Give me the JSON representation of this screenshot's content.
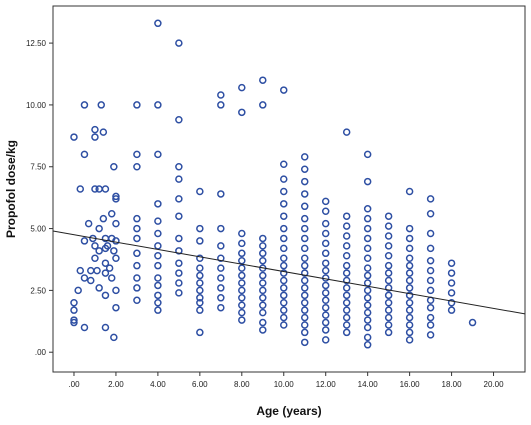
{
  "chart_data": {
    "type": "scatter",
    "title": "",
    "xlabel": "Age (years)",
    "ylabel": "Propofol dose/kg",
    "xlim": [
      -1,
      21.5
    ],
    "ylim": [
      -0.8,
      14
    ],
    "x_ticks": [
      ".00",
      "2.00",
      "4.00",
      "6.00",
      "8.00",
      "10.00",
      "12.00",
      "14.00",
      "16.00",
      "18.00",
      "20.00"
    ],
    "x_tick_values": [
      0,
      2,
      4,
      6,
      8,
      10,
      12,
      14,
      16,
      18,
      20
    ],
    "y_ticks": [
      ".00",
      "2.50",
      "5.00",
      "7.50",
      "10.00",
      "12.50"
    ],
    "y_tick_values": [
      0,
      2.5,
      5,
      7.5,
      10,
      12.5
    ],
    "grid": false,
    "legend": "none",
    "marker_color": "#2e4fa3",
    "fit_line": {
      "color": "#222222",
      "x": [
        -1,
        21.5
      ],
      "y": [
        4.9,
        1.55
      ]
    },
    "series": [
      {
        "points": [
          [
            0,
            8.7
          ],
          [
            0,
            2.0
          ],
          [
            0,
            1.7
          ],
          [
            0,
            1.3
          ],
          [
            0,
            1.2
          ],
          [
            0.2,
            2.5
          ],
          [
            0.3,
            3.3
          ],
          [
            0.3,
            6.6
          ],
          [
            0.5,
            8.0
          ],
          [
            0.5,
            10.0
          ],
          [
            0.5,
            4.5
          ],
          [
            0.5,
            3.0
          ],
          [
            0.5,
            1.0
          ],
          [
            0.7,
            5.2
          ],
          [
            0.8,
            3.3
          ],
          [
            0.8,
            2.9
          ],
          [
            0.9,
            4.6
          ],
          [
            1,
            6.6
          ],
          [
            1,
            9.0
          ],
          [
            1,
            8.7
          ],
          [
            1,
            4.3
          ],
          [
            1,
            3.8
          ],
          [
            1.1,
            3.3
          ],
          [
            1.2,
            6.6
          ],
          [
            1.2,
            5.0
          ],
          [
            1.2,
            4.1
          ],
          [
            1.2,
            2.6
          ],
          [
            1.3,
            10.0
          ],
          [
            1.4,
            8.9
          ],
          [
            1.4,
            5.4
          ],
          [
            1.5,
            6.6
          ],
          [
            1.5,
            4.6
          ],
          [
            1.5,
            4.2
          ],
          [
            1.5,
            3.6
          ],
          [
            1.5,
            3.2
          ],
          [
            1.5,
            2.3
          ],
          [
            1.5,
            1.0
          ],
          [
            1.6,
            4.3
          ],
          [
            1.7,
            3.4
          ],
          [
            1.8,
            5.6
          ],
          [
            1.8,
            4.6
          ],
          [
            1.8,
            3.0
          ],
          [
            1.9,
            4.1
          ],
          [
            1.9,
            7.5
          ],
          [
            1.9,
            0.6
          ],
          [
            2,
            6.2
          ],
          [
            2,
            5.2
          ],
          [
            2,
            4.5
          ],
          [
            2,
            3.8
          ],
          [
            2,
            2.5
          ],
          [
            2,
            6.3
          ],
          [
            2,
            1.8
          ],
          [
            3,
            10.0
          ],
          [
            3,
            8.0
          ],
          [
            3,
            7.5
          ],
          [
            3,
            5.4
          ],
          [
            3,
            5.0
          ],
          [
            3,
            4.6
          ],
          [
            3,
            4.0
          ],
          [
            3,
            3.5
          ],
          [
            3,
            3.0
          ],
          [
            3,
            2.6
          ],
          [
            3,
            2.1
          ],
          [
            4,
            13.3
          ],
          [
            4,
            10.0
          ],
          [
            4,
            8.0
          ],
          [
            4,
            6.0
          ],
          [
            4,
            5.3
          ],
          [
            4,
            4.8
          ],
          [
            4,
            4.3
          ],
          [
            4,
            3.9
          ],
          [
            4,
            3.5
          ],
          [
            4,
            3.0
          ],
          [
            4,
            2.7
          ],
          [
            4,
            2.3
          ],
          [
            4,
            2.0
          ],
          [
            4,
            1.7
          ],
          [
            5,
            12.5
          ],
          [
            5,
            9.4
          ],
          [
            5,
            7.5
          ],
          [
            5,
            7.0
          ],
          [
            5,
            6.2
          ],
          [
            5,
            5.5
          ],
          [
            5,
            4.6
          ],
          [
            5,
            4.1
          ],
          [
            5,
            3.6
          ],
          [
            5,
            3.2
          ],
          [
            5,
            2.8
          ],
          [
            5,
            2.4
          ],
          [
            6,
            6.5
          ],
          [
            6,
            5.0
          ],
          [
            6,
            4.5
          ],
          [
            6,
            3.8
          ],
          [
            6,
            3.4
          ],
          [
            6,
            3.1
          ],
          [
            6,
            2.8
          ],
          [
            6,
            2.5
          ],
          [
            6,
            2.2
          ],
          [
            6,
            2.0
          ],
          [
            6,
            1.7
          ],
          [
            6,
            0.8
          ],
          [
            7,
            10.4
          ],
          [
            7,
            10.0
          ],
          [
            7,
            6.4
          ],
          [
            7,
            5.0
          ],
          [
            7,
            4.3
          ],
          [
            7,
            3.8
          ],
          [
            7,
            3.4
          ],
          [
            7,
            3.0
          ],
          [
            7,
            2.6
          ],
          [
            7,
            2.2
          ],
          [
            7,
            1.8
          ],
          [
            8,
            10.7
          ],
          [
            8,
            9.7
          ],
          [
            8,
            4.8
          ],
          [
            8,
            4.4
          ],
          [
            8,
            4.0
          ],
          [
            8,
            3.7
          ],
          [
            8,
            3.4
          ],
          [
            8,
            3.1
          ],
          [
            8,
            2.8
          ],
          [
            8,
            2.5
          ],
          [
            8,
            2.2
          ],
          [
            8,
            1.9
          ],
          [
            8,
            1.6
          ],
          [
            8,
            1.3
          ],
          [
            9,
            11.0
          ],
          [
            9,
            10.0
          ],
          [
            9,
            4.6
          ],
          [
            9,
            4.3
          ],
          [
            9,
            4.0
          ],
          [
            9,
            3.7
          ],
          [
            9,
            3.4
          ],
          [
            9,
            3.1
          ],
          [
            9,
            2.8
          ],
          [
            9,
            2.5
          ],
          [
            9,
            2.2
          ],
          [
            9,
            1.9
          ],
          [
            9,
            1.6
          ],
          [
            9,
            1.2
          ],
          [
            9,
            0.9
          ],
          [
            10,
            10.6
          ],
          [
            10,
            7.6
          ],
          [
            10,
            7.0
          ],
          [
            10,
            6.5
          ],
          [
            10,
            6.0
          ],
          [
            10,
            5.5
          ],
          [
            10,
            5.0
          ],
          [
            10,
            4.6
          ],
          [
            10,
            4.2
          ],
          [
            10,
            3.8
          ],
          [
            10,
            3.5
          ],
          [
            10,
            3.2
          ],
          [
            10,
            2.9
          ],
          [
            10,
            2.6
          ],
          [
            10,
            2.3
          ],
          [
            10,
            2.0
          ],
          [
            10,
            1.7
          ],
          [
            10,
            1.4
          ],
          [
            10,
            1.1
          ],
          [
            11,
            7.9
          ],
          [
            11,
            7.4
          ],
          [
            11,
            6.9
          ],
          [
            11,
            6.4
          ],
          [
            11,
            5.9
          ],
          [
            11,
            5.4
          ],
          [
            11,
            5.0
          ],
          [
            11,
            4.6
          ],
          [
            11,
            4.2
          ],
          [
            11,
            3.8
          ],
          [
            11,
            3.5
          ],
          [
            11,
            3.2
          ],
          [
            11,
            2.9
          ],
          [
            11,
            2.6
          ],
          [
            11,
            2.3
          ],
          [
            11,
            2.0
          ],
          [
            11,
            1.7
          ],
          [
            11,
            1.4
          ],
          [
            11,
            1.1
          ],
          [
            11,
            0.8
          ],
          [
            11,
            0.4
          ],
          [
            12,
            6.1
          ],
          [
            12,
            5.7
          ],
          [
            12,
            5.2
          ],
          [
            12,
            4.8
          ],
          [
            12,
            4.4
          ],
          [
            12,
            4.0
          ],
          [
            12,
            3.6
          ],
          [
            12,
            3.3
          ],
          [
            12,
            3.0
          ],
          [
            12,
            2.7
          ],
          [
            12,
            2.4
          ],
          [
            12,
            2.1
          ],
          [
            12,
            1.8
          ],
          [
            12,
            1.5
          ],
          [
            12,
            1.2
          ],
          [
            12,
            0.9
          ],
          [
            12,
            0.5
          ],
          [
            13,
            8.9
          ],
          [
            13,
            5.5
          ],
          [
            13,
            5.1
          ],
          [
            13,
            4.7
          ],
          [
            13,
            4.3
          ],
          [
            13,
            3.9
          ],
          [
            13,
            3.5
          ],
          [
            13,
            3.2
          ],
          [
            13,
            2.9
          ],
          [
            13,
            2.6
          ],
          [
            13,
            2.3
          ],
          [
            13,
            2.0
          ],
          [
            13,
            1.7
          ],
          [
            13,
            1.4
          ],
          [
            13,
            1.1
          ],
          [
            13,
            0.8
          ],
          [
            14,
            8.0
          ],
          [
            14,
            6.9
          ],
          [
            14,
            5.8
          ],
          [
            14,
            5.4
          ],
          [
            14,
            5.0
          ],
          [
            14,
            4.6
          ],
          [
            14,
            4.2
          ],
          [
            14,
            3.8
          ],
          [
            14,
            3.4
          ],
          [
            14,
            3.1
          ],
          [
            14,
            2.8
          ],
          [
            14,
            2.5
          ],
          [
            14,
            2.2
          ],
          [
            14,
            1.9
          ],
          [
            14,
            1.6
          ],
          [
            14,
            1.3
          ],
          [
            14,
            1.0
          ],
          [
            14,
            0.6
          ],
          [
            14,
            0.3
          ],
          [
            15,
            5.5
          ],
          [
            15,
            5.1
          ],
          [
            15,
            4.7
          ],
          [
            15,
            4.3
          ],
          [
            15,
            3.9
          ],
          [
            15,
            3.5
          ],
          [
            15,
            3.2
          ],
          [
            15,
            2.9
          ],
          [
            15,
            2.6
          ],
          [
            15,
            2.3
          ],
          [
            15,
            2.0
          ],
          [
            15,
            1.7
          ],
          [
            15,
            1.4
          ],
          [
            15,
            1.1
          ],
          [
            15,
            0.8
          ],
          [
            16,
            6.5
          ],
          [
            16,
            5.0
          ],
          [
            16,
            4.6
          ],
          [
            16,
            4.2
          ],
          [
            16,
            3.8
          ],
          [
            16,
            3.5
          ],
          [
            16,
            3.2
          ],
          [
            16,
            2.9
          ],
          [
            16,
            2.6
          ],
          [
            16,
            2.3
          ],
          [
            16,
            2.0
          ],
          [
            16,
            1.7
          ],
          [
            16,
            1.4
          ],
          [
            16,
            1.1
          ],
          [
            16,
            0.8
          ],
          [
            16,
            0.5
          ],
          [
            17,
            6.2
          ],
          [
            17,
            5.6
          ],
          [
            17,
            4.8
          ],
          [
            17,
            4.2
          ],
          [
            17,
            3.7
          ],
          [
            17,
            3.3
          ],
          [
            17,
            2.9
          ],
          [
            17,
            2.5
          ],
          [
            17,
            2.1
          ],
          [
            17,
            1.8
          ],
          [
            17,
            1.4
          ],
          [
            17,
            1.1
          ],
          [
            17,
            0.7
          ],
          [
            18,
            3.6
          ],
          [
            18,
            3.2
          ],
          [
            18,
            2.8
          ],
          [
            18,
            2.4
          ],
          [
            18,
            2.0
          ],
          [
            18,
            1.7
          ],
          [
            19,
            1.2
          ]
        ]
      }
    ]
  }
}
